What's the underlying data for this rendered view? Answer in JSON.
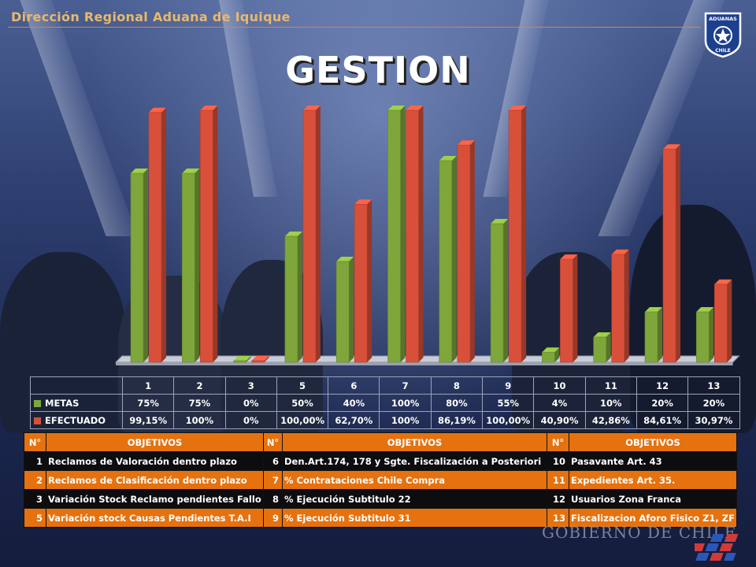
{
  "header": {
    "title": "Dirección Regional Aduana de Iquique",
    "logo_text_top": "ADUANAS",
    "logo_text_bottom": "CHILE"
  },
  "main_title": "GESTION",
  "chart_data": {
    "type": "bar",
    "categories": [
      "1",
      "2",
      "3",
      "5",
      "6",
      "7",
      "8",
      "9",
      "10",
      "11",
      "12",
      "13"
    ],
    "series": [
      {
        "name": "METAS",
        "color": "#7ea63a",
        "values": [
          75,
          75,
          0,
          50,
          40,
          100,
          80,
          55,
          4,
          10,
          20,
          20
        ],
        "labels": [
          "75%",
          "75%",
          "0%",
          "50%",
          "40%",
          "100%",
          "80%",
          "55%",
          "4%",
          "10%",
          "20%",
          "20%"
        ]
      },
      {
        "name": "EFECTUADO",
        "color": "#d9503a",
        "values": [
          99.15,
          100,
          0,
          100,
          62.7,
          100,
          86.19,
          100,
          40.9,
          42.86,
          84.61,
          30.97
        ],
        "labels": [
          "99,15%",
          "100%",
          "0%",
          "100,00%",
          "62,70%",
          "100%",
          "86,19%",
          "100,00%",
          "40,90%",
          "42,86%",
          "84,61%",
          "30,97%"
        ]
      }
    ],
    "ylim": [
      0,
      100
    ],
    "legend": "table-below"
  },
  "objectives_table": {
    "header": [
      "N°",
      "OBJETIVOS",
      "N°",
      "OBJETIVOS",
      "N°",
      "OBJETIVOS"
    ],
    "rows": [
      [
        "1",
        "Reclamos de Valoración dentro plazo",
        "6",
        "Den.Art.174, 178 y Sgte. Fiscalización a Posteriori",
        "10",
        "Pasavante Art. 43"
      ],
      [
        "2",
        "Reclamos de Clasificación dentro plazo",
        "7",
        "% Contrataciones Chile Compra",
        "11",
        "Expedientes Art. 35."
      ],
      [
        "3",
        "Variación Stock Reclamo pendientes Fallo",
        "8",
        "% Ejecución Subtitulo 22",
        "12",
        "Usuarios Zona Franca"
      ],
      [
        "5",
        "Variación stock Causas Pendientes T.A.I",
        "9",
        "% Ejecución Subtitulo 31",
        "13",
        "Fiscalizacion Aforo Fisico Z1, ZF"
      ]
    ]
  },
  "footer": {
    "gobierno": "GOBIERNO DE CHILE"
  }
}
